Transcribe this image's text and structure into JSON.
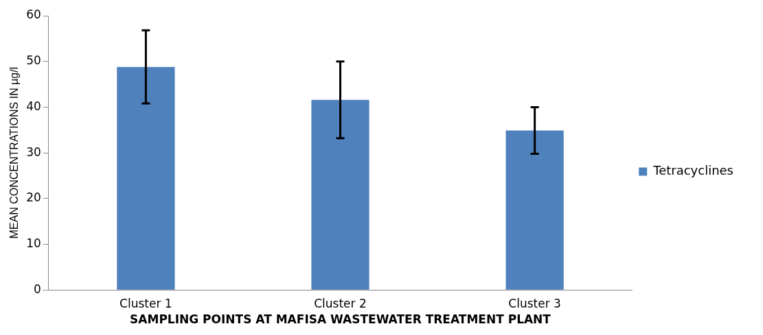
{
  "chart_data": {
    "type": "bar",
    "xlabel": "SAMPLING POINTS AT MAFISA WASTEWATER TREATMENT PLANT",
    "ylabel": "MEAN CONCENTRATIONS IN µg/l",
    "categories": [
      "Cluster 1",
      "Cluster 2",
      "Cluster 3"
    ],
    "series": [
      {
        "name": "Tetracyclines",
        "color": "#4f81bd",
        "values": [
          48.8,
          41.6,
          34.9
        ],
        "errors": [
          8,
          8.4,
          5.1
        ]
      }
    ],
    "ylim": [
      0,
      60
    ],
    "yticks": [
      0,
      10,
      20,
      30,
      40,
      50,
      60
    ],
    "grid": false,
    "legend": "right"
  }
}
